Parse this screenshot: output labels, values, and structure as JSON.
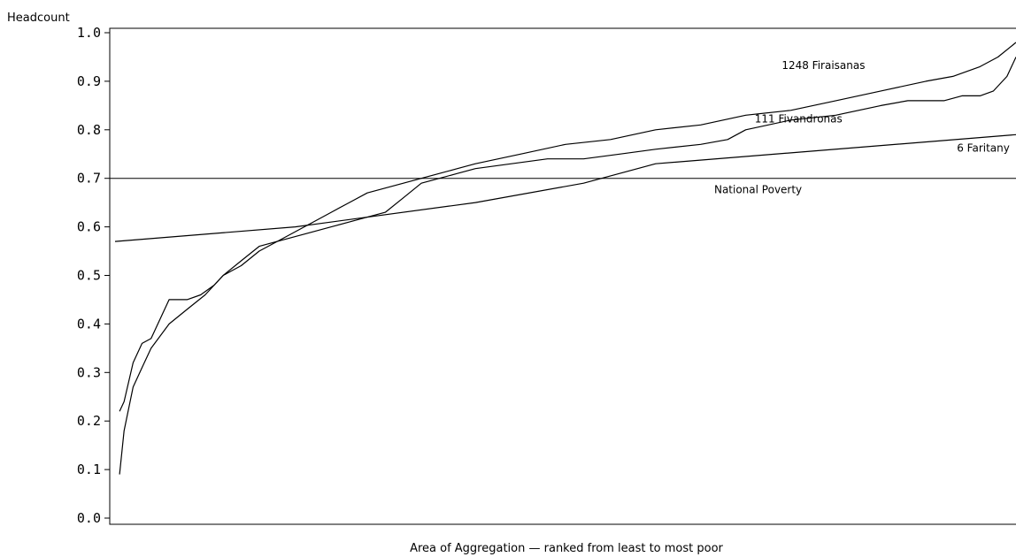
{
  "chart_data": {
    "type": "line",
    "title": "",
    "ylabel": "Headcount",
    "xlabel": "Area of Aggregation — ranked from least to most poor",
    "ylim": [
      0.0,
      1.0
    ],
    "xlim": [
      0,
      100
    ],
    "yticks": [
      {
        "value": 0.0,
        "label": "0.0"
      },
      {
        "value": 0.1,
        "label": "0.1"
      },
      {
        "value": 0.2,
        "label": "0.2"
      },
      {
        "value": 0.3,
        "label": "0.3"
      },
      {
        "value": 0.4,
        "label": "0.4"
      },
      {
        "value": 0.5,
        "label": "0.5"
      },
      {
        "value": 0.6,
        "label": "0.6"
      },
      {
        "value": 0.7,
        "label": "0.7"
      },
      {
        "value": 0.8,
        "label": "0.8"
      },
      {
        "value": 0.9,
        "label": "0.9"
      },
      {
        "value": 1.0,
        "label": "1.0"
      }
    ],
    "grid": false,
    "series": [
      {
        "name": "1248 Firaisanas",
        "color": "#000000",
        "x": [
          0.5,
          1,
          2,
          3,
          4,
          6,
          8,
          10,
          12,
          14,
          16,
          18,
          20,
          22,
          24,
          26,
          28,
          30,
          32,
          34,
          36,
          38,
          40,
          45,
          50,
          55,
          60,
          65,
          70,
          75,
          80,
          85,
          90,
          93,
          96,
          98,
          100
        ],
        "y": [
          0.09,
          0.18,
          0.27,
          0.31,
          0.35,
          0.4,
          0.43,
          0.46,
          0.5,
          0.53,
          0.56,
          0.57,
          0.59,
          0.61,
          0.63,
          0.65,
          0.67,
          0.68,
          0.69,
          0.7,
          0.71,
          0.72,
          0.73,
          0.75,
          0.77,
          0.78,
          0.8,
          0.81,
          0.83,
          0.84,
          0.86,
          0.88,
          0.9,
          0.91,
          0.93,
          0.95,
          0.98
        ]
      },
      {
        "name": "111 Fivandronas",
        "color": "#000000",
        "x": [
          0.5,
          1,
          2,
          3,
          4,
          5,
          6,
          8,
          9.5,
          11,
          12,
          13,
          14,
          16,
          18,
          20,
          22,
          24,
          26,
          28,
          30,
          32,
          34,
          36,
          38,
          40,
          44,
          48,
          52,
          56,
          60,
          65,
          68,
          70,
          75,
          80,
          85,
          88,
          90,
          92,
          94,
          96,
          97.5,
          99,
          100
        ],
        "y": [
          0.22,
          0.24,
          0.32,
          0.36,
          0.37,
          0.41,
          0.45,
          0.45,
          0.46,
          0.48,
          0.5,
          0.51,
          0.52,
          0.55,
          0.57,
          0.58,
          0.59,
          0.6,
          0.61,
          0.62,
          0.63,
          0.66,
          0.69,
          0.7,
          0.71,
          0.72,
          0.73,
          0.74,
          0.74,
          0.75,
          0.76,
          0.77,
          0.78,
          0.8,
          0.82,
          0.83,
          0.85,
          0.86,
          0.86,
          0.86,
          0.87,
          0.87,
          0.88,
          0.91,
          0.95
        ]
      },
      {
        "name": "6 Faritany",
        "color": "#000000",
        "x": [
          0,
          20,
          40,
          52,
          60,
          100
        ],
        "y": [
          0.57,
          0.6,
          0.65,
          0.69,
          0.73,
          0.79
        ]
      }
    ],
    "reference_line": {
      "name": "National Poverty",
      "y": 0.7,
      "color": "#000000"
    }
  }
}
